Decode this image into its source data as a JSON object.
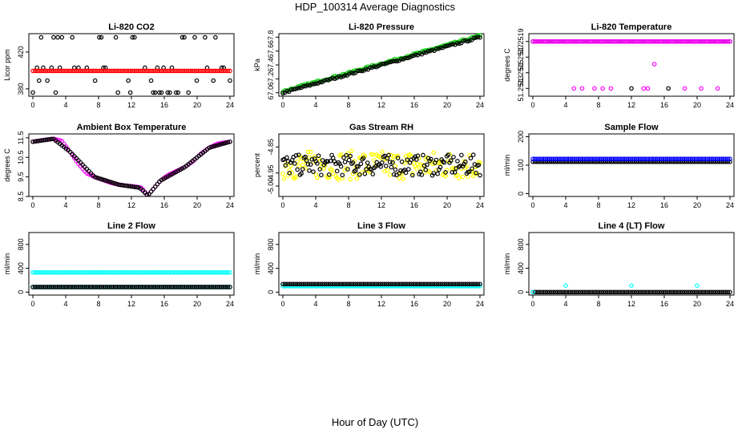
{
  "title": "HDP_100314  Average Diagnostics",
  "xlabel": "Hour of Day (UTC)",
  "colors": {
    "black": "#000000",
    "red": "#ff0000",
    "green": "#00cc00",
    "magenta": "#ff00ff",
    "yellow": "#ffff00",
    "blue": "#0000ff",
    "cyan": "#00ffff"
  },
  "chart_data": [
    {
      "type": "scatter",
      "title": "Li-820 CO2",
      "ylabel": "Licor ppm",
      "xlim": [
        0,
        24
      ],
      "xticks": [
        0,
        4,
        8,
        12,
        16,
        20,
        24
      ],
      "ylim": [
        372,
        440
      ],
      "yticks": [
        {
          "v": 380,
          "label": "380"
        },
        {
          "v": 420,
          "label": "420"
        }
      ],
      "series": [
        {
          "name": "black",
          "color": "black",
          "pattern": "levels",
          "levels": [
            376,
            389,
            403,
            436
          ]
        },
        {
          "name": "red",
          "color": "red",
          "pattern": "flat",
          "value": 399.5
        }
      ]
    },
    {
      "type": "scatter",
      "title": "Li-820 Pressure",
      "ylabel": "kPa",
      "xlim": [
        0,
        24
      ],
      "xticks": [
        0,
        4,
        8,
        12,
        16,
        20,
        24
      ],
      "ylim": [
        66.95,
        67.85
      ],
      "yticks": [
        {
          "v": 67.0,
          "label": "67.0"
        },
        {
          "v": 67.2,
          "label": "67.2"
        },
        {
          "v": 67.4,
          "label": "67.4"
        },
        {
          "v": 67.6,
          "label": "67.6"
        },
        {
          "v": 67.8,
          "label": "67.8"
        }
      ],
      "series": [
        {
          "name": "green",
          "color": "green",
          "pattern": "trend",
          "from": 67.02,
          "to": 67.82
        },
        {
          "name": "black",
          "color": "black",
          "pattern": "trend",
          "from": 67.0,
          "to": 67.8
        }
      ]
    },
    {
      "type": "scatter",
      "title": "Li-820 Temperature",
      "ylabel": "degrees C",
      "xlim": [
        0,
        24
      ],
      "xticks": [
        0,
        4,
        8,
        12,
        16,
        20,
        24
      ],
      "ylim": [
        51.2512,
        51.252
      ],
      "yticks": [
        {
          "v": 51.2513,
          "label": "51.2513"
        },
        {
          "v": 51.2515,
          "label": "51.2515"
        },
        {
          "v": 51.2517,
          "label": "51.2517"
        },
        {
          "v": 51.2519,
          "label": "51.2519"
        }
      ],
      "series": [
        {
          "name": "black",
          "color": "black",
          "pattern": "flat",
          "value": 51.2519
        },
        {
          "name": "magenta",
          "color": "magenta",
          "pattern": "flat",
          "value": 51.2519
        },
        {
          "name": "magenta-low",
          "color": "magenta",
          "pattern": "points",
          "points": [
            [
              5,
              51.2513
            ],
            [
              6,
              51.2513
            ],
            [
              7.5,
              51.2513
            ],
            [
              8.5,
              51.2513
            ],
            [
              9.5,
              51.2513
            ],
            [
              13.5,
              51.2513
            ],
            [
              14,
              51.2513
            ],
            [
              14.8,
              51.25161
            ],
            [
              16.5,
              51.2519
            ],
            [
              18.5,
              51.2513
            ],
            [
              20.5,
              51.2513
            ],
            [
              22.5,
              51.2513
            ]
          ]
        },
        {
          "name": "black-low",
          "color": "black",
          "pattern": "points",
          "points": [
            [
              12,
              51.2513
            ],
            [
              16.5,
              51.2513
            ]
          ]
        }
      ]
    },
    {
      "type": "scatter",
      "title": "Ambient Box Temperature",
      "ylabel": "degrees C",
      "xlim": [
        0,
        24
      ],
      "xticks": [
        0,
        4,
        8,
        12,
        16,
        20,
        24
      ],
      "ylim": [
        8.5,
        11.7
      ],
      "yticks": [
        {
          "v": 8.5,
          "label": "8.5"
        },
        {
          "v": 9.5,
          "label": "9.5"
        },
        {
          "v": 10.5,
          "label": "10.5"
        },
        {
          "v": 11.5,
          "label": "11.5"
        }
      ],
      "series": [
        {
          "name": "magenta",
          "color": "magenta",
          "pattern": "curve",
          "knots": [
            [
              0,
              11.3
            ],
            [
              1.5,
              11.4
            ],
            [
              2.5,
              11.45
            ],
            [
              3.5,
              11.35
            ],
            [
              4.5,
              10.8
            ],
            [
              5.5,
              10.2
            ],
            [
              6.5,
              9.7
            ],
            [
              7.5,
              9.5
            ],
            [
              8.5,
              9.35
            ],
            [
              9.5,
              9.2
            ],
            [
              10.5,
              9.1
            ],
            [
              11.5,
              9.05
            ],
            [
              12.5,
              9.0
            ],
            [
              13.2,
              8.95
            ],
            [
              14,
              8.55
            ],
            [
              14.5,
              8.8
            ],
            [
              15.5,
              9.3
            ],
            [
              16.5,
              9.6
            ],
            [
              17.5,
              9.8
            ],
            [
              18.5,
              10.0
            ],
            [
              19.5,
              10.3
            ],
            [
              20.5,
              10.7
            ],
            [
              21.5,
              11.0
            ],
            [
              22.5,
              11.2
            ],
            [
              24,
              11.3
            ]
          ]
        },
        {
          "name": "black",
          "color": "black",
          "pattern": "curve",
          "knots": [
            [
              0,
              11.3
            ],
            [
              2.5,
              11.45
            ],
            [
              4.5,
              10.8
            ],
            [
              7.5,
              9.5
            ],
            [
              10.5,
              9.1
            ],
            [
              13,
              8.95
            ],
            [
              14,
              8.55
            ],
            [
              15.5,
              9.3
            ],
            [
              18.5,
              10.0
            ],
            [
              21.5,
              11.0
            ],
            [
              24,
              11.3
            ]
          ]
        }
      ]
    },
    {
      "type": "scatter",
      "title": "Gas Stream RH",
      "ylabel": "percent",
      "xlim": [
        0,
        24
      ],
      "xticks": [
        0,
        4,
        8,
        12,
        16,
        20,
        24
      ],
      "ylim": [
        -5.04,
        -4.8
      ],
      "yticks": [
        {
          "v": -4.85,
          "label": "-4.85"
        },
        {
          "v": -4.95,
          "label": "-4.95"
        },
        {
          "v": -5.0,
          "label": "-5.00"
        }
      ],
      "series": [
        {
          "name": "yellow",
          "color": "yellow",
          "pattern": "noise",
          "center": -4.92,
          "spread": 0.055
        },
        {
          "name": "black",
          "color": "black",
          "pattern": "noise",
          "center": -4.92,
          "spread": 0.04
        }
      ]
    },
    {
      "type": "scatter",
      "title": "Sample Flow",
      "ylabel": "ml/min",
      "xlim": [
        0,
        24
      ],
      "xticks": [
        0,
        4,
        8,
        12,
        16,
        20,
        24
      ],
      "ylim": [
        -10,
        210
      ],
      "yticks": [
        {
          "v": 0,
          "label": "0"
        },
        {
          "v": 100,
          "label": "100"
        },
        {
          "v": 200,
          "label": "200"
        }
      ],
      "series": [
        {
          "name": "black",
          "color": "black",
          "pattern": "flat",
          "value": 112
        },
        {
          "name": "blue",
          "color": "blue",
          "pattern": "flat",
          "value": 122
        }
      ]
    },
    {
      "type": "scatter",
      "title": "Line 2 Flow",
      "ylabel": "ml/min",
      "xlim": [
        0,
        24
      ],
      "xticks": [
        0,
        4,
        8,
        12,
        16,
        20,
        24
      ],
      "ylim": [
        -50,
        1000
      ],
      "yticks": [
        {
          "v": 0,
          "label": "0"
        },
        {
          "v": 400,
          "label": "400"
        },
        {
          "v": 800,
          "label": "800"
        }
      ],
      "series": [
        {
          "name": "cyan",
          "color": "cyan",
          "pattern": "flat",
          "value": 330
        },
        {
          "name": "cyan-low",
          "color": "cyan",
          "pattern": "flat",
          "value": 85
        },
        {
          "name": "black",
          "color": "black",
          "pattern": "flat",
          "value": 85
        }
      ]
    },
    {
      "type": "scatter",
      "title": "Line 3 Flow",
      "ylabel": "ml/min",
      "xlim": [
        0,
        24
      ],
      "xticks": [
        0,
        4,
        8,
        12,
        16,
        20,
        24
      ],
      "ylim": [
        -50,
        1000
      ],
      "yticks": [
        {
          "v": 0,
          "label": "0"
        },
        {
          "v": 400,
          "label": "400"
        },
        {
          "v": 800,
          "label": "800"
        }
      ],
      "series": [
        {
          "name": "cyan",
          "color": "cyan",
          "pattern": "flat",
          "value": 100
        },
        {
          "name": "black",
          "color": "black",
          "pattern": "flat",
          "value": 135
        }
      ]
    },
    {
      "type": "scatter",
      "title": "Line 4 (LT) Flow",
      "ylabel": "ml/min",
      "xlim": [
        0,
        24
      ],
      "xticks": [
        0,
        4,
        8,
        12,
        16,
        20,
        24
      ],
      "ylim": [
        -50,
        1000
      ],
      "yticks": [
        {
          "v": 0,
          "label": "0"
        },
        {
          "v": 400,
          "label": "400"
        },
        {
          "v": 800,
          "label": "800"
        }
      ],
      "series": [
        {
          "name": "black",
          "color": "black",
          "pattern": "flat",
          "value": 0
        },
        {
          "name": "cyan",
          "color": "cyan",
          "pattern": "points",
          "points": [
            [
              0,
              0
            ],
            [
              4,
              110
            ],
            [
              12,
              110
            ],
            [
              20,
              110
            ]
          ]
        }
      ]
    }
  ]
}
